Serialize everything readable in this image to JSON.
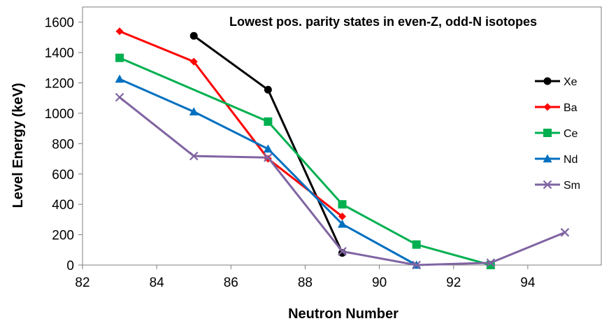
{
  "chart_data": {
    "type": "line",
    "title": "Lowest pos. parity states in even-Z, odd-N isotopes",
    "xlabel": "Neutron Number",
    "ylabel": "Level Energy (keV)",
    "xlim": [
      82,
      96
    ],
    "ylim": [
      0,
      1700
    ],
    "xticks": [
      82,
      84,
      86,
      88,
      90,
      92,
      94
    ],
    "yticks": [
      0,
      200,
      400,
      600,
      800,
      1000,
      1200,
      1400,
      1600
    ],
    "grid": false,
    "legend_position": "right",
    "series": [
      {
        "name": "Xe",
        "color": "#000000",
        "marker": "circle",
        "x": [
          85,
          87,
          89
        ],
        "y": [
          1510,
          1155,
          80
        ]
      },
      {
        "name": "Ba",
        "color": "#ff0000",
        "marker": "diamond",
        "x": [
          83,
          85,
          87,
          89
        ],
        "y": [
          1540,
          1340,
          700,
          320
        ]
      },
      {
        "name": "Ce",
        "color": "#00b050",
        "marker": "square",
        "x": [
          83,
          87,
          89,
          91,
          93
        ],
        "y": [
          1365,
          945,
          400,
          135,
          0
        ]
      },
      {
        "name": "Nd",
        "color": "#0070c0",
        "marker": "triangle",
        "x": [
          83,
          85,
          87,
          89,
          91
        ],
        "y": [
          1225,
          1010,
          765,
          270,
          0
        ]
      },
      {
        "name": "Sm",
        "color": "#8064a2",
        "marker": "x",
        "x": [
          83,
          85,
          87,
          89,
          91,
          93,
          95
        ],
        "y": [
          1105,
          718,
          708,
          90,
          0,
          15,
          215
        ]
      }
    ]
  }
}
